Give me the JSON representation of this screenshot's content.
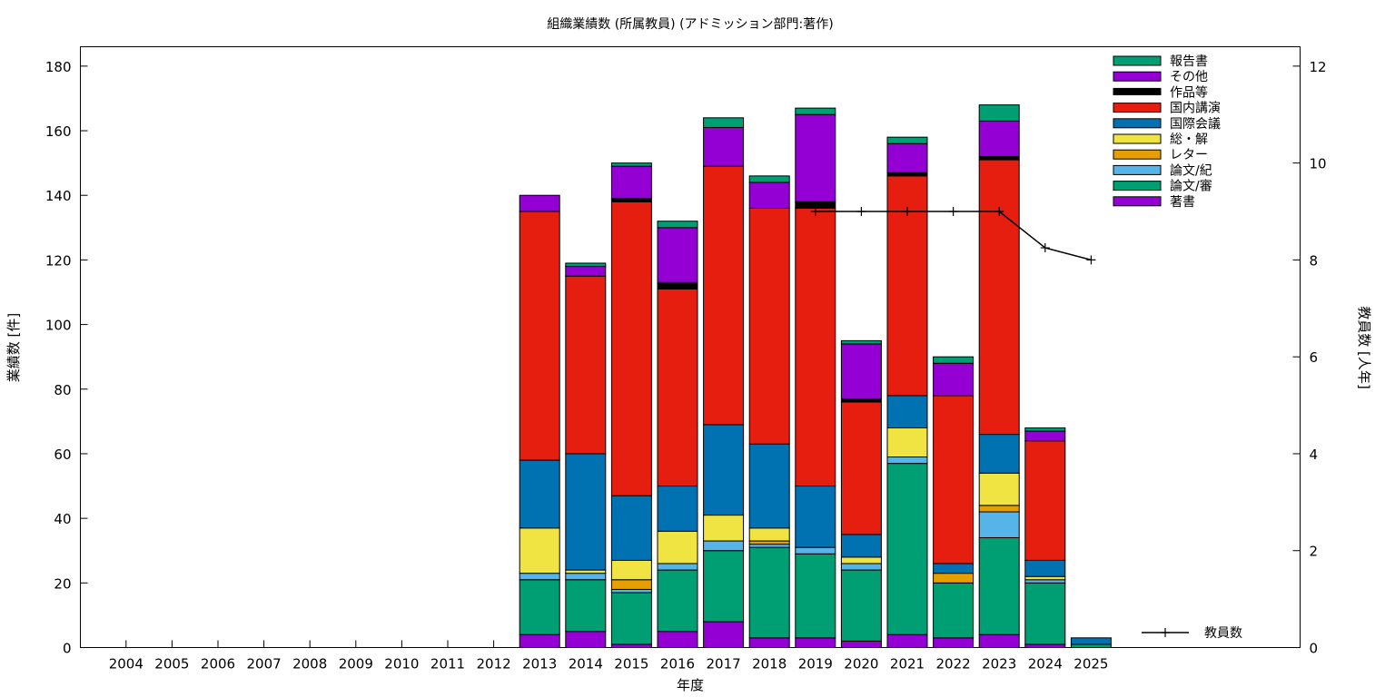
{
  "chart_data": {
    "type": "bar",
    "title": "組織業績数 (所属教員) (アドミッション部門:著作)",
    "xlabel": "年度",
    "ylabel": "業績数 [件]",
    "y2label": "教員数 [人年]",
    "categories": [
      "2004",
      "2005",
      "2006",
      "2007",
      "2008",
      "2009",
      "2010",
      "2011",
      "2012",
      "2013",
      "2014",
      "2015",
      "2016",
      "2017",
      "2018",
      "2019",
      "2020",
      "2021",
      "2022",
      "2023",
      "2024",
      "2025"
    ],
    "ylim": [
      0,
      186
    ],
    "y_ticks": [
      0,
      20,
      40,
      60,
      80,
      100,
      120,
      140,
      160,
      180
    ],
    "y2lim": [
      0,
      12.4
    ],
    "y2_ticks": [
      0,
      2,
      4,
      6,
      8,
      10,
      12
    ],
    "legend_position": "top-right",
    "series": [
      {
        "name": "著書",
        "color": "#9400d3",
        "values": [
          0,
          0,
          0,
          0,
          0,
          0,
          0,
          0,
          0,
          4,
          5,
          1,
          5,
          8,
          3,
          3,
          2,
          4,
          3,
          4,
          1,
          0
        ]
      },
      {
        "name": "論文/審",
        "color": "#009e73",
        "values": [
          0,
          0,
          0,
          0,
          0,
          0,
          0,
          0,
          0,
          17,
          16,
          16,
          19,
          22,
          28,
          26,
          22,
          53,
          17,
          30,
          19,
          1
        ]
      },
      {
        "name": "論文/紀",
        "color": "#56b4e9",
        "values": [
          0,
          0,
          0,
          0,
          0,
          0,
          0,
          0,
          0,
          2,
          2,
          1,
          2,
          3,
          1,
          2,
          2,
          2,
          0,
          8,
          1,
          0
        ]
      },
      {
        "name": "レター",
        "color": "#e69f00",
        "values": [
          0,
          0,
          0,
          0,
          0,
          0,
          0,
          0,
          0,
          0,
          0,
          3,
          0,
          0,
          1,
          0,
          0,
          0,
          3,
          2,
          0,
          0
        ]
      },
      {
        "name": "総・解",
        "color": "#f0e442",
        "values": [
          0,
          0,
          0,
          0,
          0,
          0,
          0,
          0,
          0,
          14,
          1,
          6,
          10,
          8,
          4,
          0,
          2,
          9,
          0,
          10,
          1,
          0
        ]
      },
      {
        "name": "国際会議",
        "color": "#0072b2",
        "values": [
          0,
          0,
          0,
          0,
          0,
          0,
          0,
          0,
          0,
          21,
          36,
          20,
          14,
          28,
          26,
          19,
          7,
          10,
          3,
          12,
          5,
          2
        ]
      },
      {
        "name": "国内講演",
        "color": "#e51e10",
        "values": [
          0,
          0,
          0,
          0,
          0,
          0,
          0,
          0,
          0,
          77,
          55,
          91,
          61,
          80,
          73,
          86,
          41,
          68,
          52,
          85,
          37,
          0
        ]
      },
      {
        "name": "作品等",
        "color": "#000000",
        "values": [
          0,
          0,
          0,
          0,
          0,
          0,
          0,
          0,
          0,
          0,
          0,
          1,
          2,
          0,
          0,
          2,
          1,
          1,
          0,
          1,
          0,
          0
        ]
      },
      {
        "name": "その他",
        "color": "#9400d3",
        "values": [
          0,
          0,
          0,
          0,
          0,
          0,
          0,
          0,
          0,
          5,
          3,
          10,
          17,
          12,
          8,
          27,
          17,
          9,
          10,
          11,
          3,
          0
        ]
      },
      {
        "name": "報告書",
        "color": "#009e73",
        "values": [
          0,
          0,
          0,
          0,
          0,
          0,
          0,
          0,
          0,
          0,
          1,
          1,
          2,
          3,
          2,
          2,
          1,
          2,
          2,
          5,
          1,
          0
        ]
      }
    ],
    "line_series": {
      "name": "教員数",
      "axis": "y2",
      "x": [
        "2019",
        "2020",
        "2021",
        "2022",
        "2023",
        "2024",
        "2025"
      ],
      "values": [
        9,
        9,
        9,
        9,
        9,
        8.25,
        8
      ]
    }
  }
}
